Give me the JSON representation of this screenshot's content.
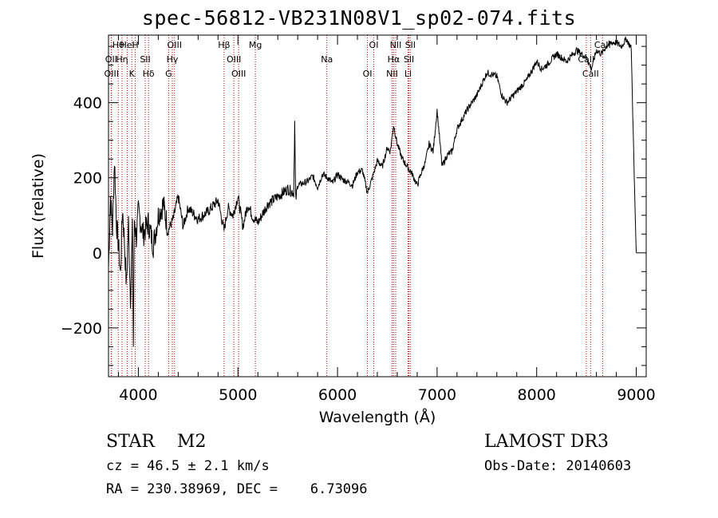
{
  "title": "spec-56812-VB231N08V1_sp02-074.fits",
  "chart_data": {
    "type": "line",
    "title": "spec-56812-VB231N08V1_sp02-074.fits",
    "xlabel": "Wavelength (Å)",
    "ylabel": "Flux (relative)",
    "xlim": [
      3700,
      9100
    ],
    "ylim": [
      -330,
      580
    ],
    "xticks": [
      4000,
      5000,
      6000,
      7000,
      8000,
      9000
    ],
    "yticks": [
      -200,
      0,
      200,
      400
    ],
    "x": [
      3700,
      3720,
      3740,
      3760,
      3780,
      3800,
      3820,
      3840,
      3860,
      3880,
      3900,
      3920,
      3940,
      3950,
      3960,
      3980,
      4000,
      4050,
      4100,
      4150,
      4200,
      4250,
      4300,
      4350,
      4400,
      4450,
      4500,
      4600,
      4700,
      4800,
      4860,
      4900,
      4950,
      5000,
      5050,
      5100,
      5150,
      5200,
      5300,
      5400,
      5500,
      5560,
      5570,
      5580,
      5600,
      5700,
      5750,
      5800,
      5850,
      5900,
      5950,
      6000,
      6050,
      6100,
      6150,
      6200,
      6250,
      6300,
      6350,
      6400,
      6450,
      6500,
      6530,
      6563,
      6600,
      6650,
      6700,
      6750,
      6800,
      6850,
      6880,
      6920,
      6960,
      7000,
      7050,
      7100,
      7150,
      7200,
      7300,
      7400,
      7500,
      7600,
      7650,
      7700,
      7800,
      7900,
      8000,
      8050,
      8100,
      8200,
      8300,
      8400,
      8500,
      8550,
      8600,
      8650,
      8700,
      8750,
      8800,
      8850,
      8900,
      8950,
      8980,
      9000
    ],
    "y": [
      -40,
      150,
      60,
      250,
      80,
      20,
      -60,
      120,
      30,
      -90,
      80,
      -120,
      60,
      -250,
      90,
      40,
      110,
      50,
      80,
      20,
      100,
      130,
      60,
      90,
      150,
      70,
      120,
      90,
      110,
      140,
      60,
      120,
      100,
      150,
      70,
      130,
      95,
      80,
      130,
      150,
      170,
      160,
      350,
      140,
      180,
      190,
      205,
      175,
      210,
      200,
      185,
      210,
      195,
      190,
      180,
      215,
      220,
      160,
      200,
      245,
      230,
      280,
      270,
      340,
      290,
      250,
      230,
      210,
      180,
      220,
      240,
      290,
      270,
      380,
      230,
      260,
      270,
      330,
      380,
      420,
      480,
      470,
      420,
      400,
      430,
      460,
      510,
      490,
      500,
      530,
      510,
      540,
      520,
      490,
      540,
      530,
      550,
      560,
      560,
      550,
      570,
      545,
      200,
      0
    ],
    "emission_lines": [
      {
        "label": "Hθ",
        "x": 3798
      },
      {
        "label": "OII",
        "x": 3727
      },
      {
        "label": "OIII",
        "x": 3730
      },
      {
        "label": "HeI",
        "x": 3889
      },
      {
        "label": "Hη",
        "x": 3836
      },
      {
        "label": "K",
        "x": 3934
      },
      {
        "label": "H",
        "x": 3969
      },
      {
        "label": "SII",
        "x": 4069
      },
      {
        "label": "Hδ",
        "x": 4102
      },
      {
        "label": "OIII",
        "x": 4363
      },
      {
        "label": "Hγ",
        "x": 4341
      },
      {
        "label": "G",
        "x": 4304
      },
      {
        "label": "Hβ",
        "x": 4861
      },
      {
        "label": "OIII",
        "x": 4959
      },
      {
        "label": "OIII",
        "x": 5007
      },
      {
        "label": "Mg",
        "x": 5175
      },
      {
        "label": "Na",
        "x": 5893
      },
      {
        "label": "OI",
        "x": 6300
      },
      {
        "label": "OI",
        "x": 6364
      },
      {
        "label": "Hα",
        "x": 6563
      },
      {
        "label": "NII",
        "x": 6548
      },
      {
        "label": "NII",
        "x": 6584
      },
      {
        "label": "SII",
        "x": 6717
      },
      {
        "label": "Li",
        "x": 6708
      },
      {
        "label": "SII",
        "x": 6731
      },
      {
        "label": "CaII",
        "x": 8498
      },
      {
        "label": "CaII",
        "x": 8542
      },
      {
        "label": "CaII",
        "x": 8662
      }
    ]
  },
  "info": {
    "star_line": "STAR    M2",
    "cz_line": "cz = 46.5 ± 2.1 km/s",
    "radec_line": "RA = 230.38969, DEC =    6.73096",
    "survey": "LAMOST DR3",
    "obs_date": "Obs-Date: 20140603"
  },
  "colors": {
    "axes": "#000000",
    "lines": "#c00000",
    "spectrum": "#000000"
  }
}
